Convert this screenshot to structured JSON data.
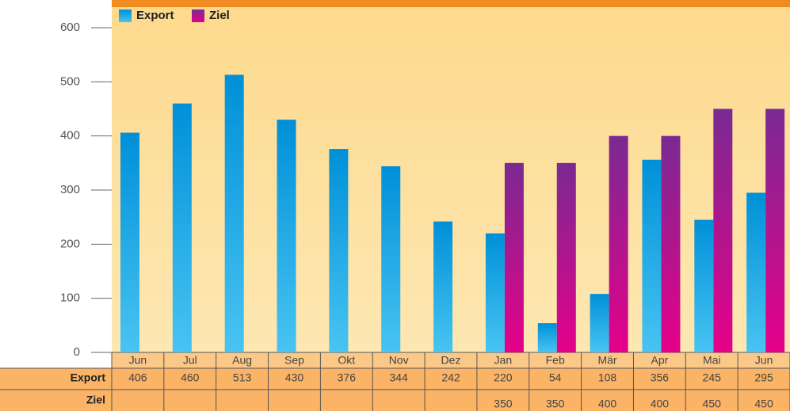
{
  "chart_data": {
    "type": "bar",
    "categories": [
      "Jun",
      "Jul",
      "Aug",
      "Sep",
      "Okt",
      "Nov",
      "Dez",
      "Jan",
      "Feb",
      "Mär",
      "Apr",
      "Mai",
      "Jun"
    ],
    "series": [
      {
        "name": "Export",
        "color": "#0090d8",
        "values": [
          406,
          460,
          513,
          430,
          376,
          344,
          242,
          220,
          54,
          108,
          356,
          245,
          295
        ]
      },
      {
        "name": "Ziel",
        "color": "#7a2a92",
        "values": [
          null,
          null,
          null,
          null,
          null,
          null,
          null,
          350,
          350,
          400,
          400,
          450,
          450
        ]
      }
    ],
    "ylim": [
      0,
      600
    ],
    "yticks": [
      0,
      100,
      200,
      300,
      400,
      500,
      600
    ]
  }
}
